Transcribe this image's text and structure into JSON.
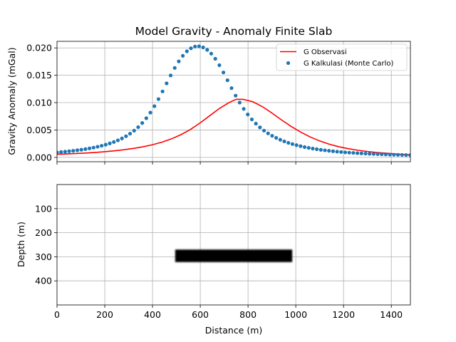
{
  "chart_data": [
    {
      "type": "line+scatter",
      "title": "Model Gravity - Anomaly Finite Slab",
      "xlabel": "",
      "ylabel": "Gravity Anomaly (mGal)",
      "xlim": [
        0,
        1480
      ],
      "ylim": [
        -0.0008,
        0.0212
      ],
      "x_ticks": [
        0,
        200,
        400,
        600,
        800,
        1000,
        1200,
        1400
      ],
      "x_ticklabels_visible": false,
      "y_ticks": [
        0.0,
        0.005,
        0.01,
        0.015,
        0.02
      ],
      "y_ticklabels": [
        "0.000",
        "0.005",
        "0.010",
        "0.015",
        "0.020"
      ],
      "grid": true,
      "legend": "top-right",
      "colors": {
        "observed": "#ff0000",
        "calculated": "#1f77b4"
      },
      "series": [
        {
          "name": "G Observasi",
          "style": "line",
          "x": [
            0,
            40,
            80,
            120,
            160,
            200,
            240,
            280,
            320,
            360,
            400,
            440,
            480,
            520,
            560,
            600,
            640,
            680,
            720,
            750,
            780,
            820,
            860,
            900,
            940,
            980,
            1020,
            1060,
            1100,
            1140,
            1180,
            1220,
            1260,
            1300,
            1340,
            1380,
            1420,
            1480
          ],
          "values": [
            0.00055,
            0.00062,
            0.0007,
            0.00079,
            0.0009,
            0.00103,
            0.00119,
            0.00139,
            0.00163,
            0.00193,
            0.00231,
            0.00278,
            0.00339,
            0.00416,
            0.00513,
            0.00631,
            0.00762,
            0.00893,
            0.01,
            0.0106,
            0.0106,
            0.01017,
            0.00927,
            0.0081,
            0.00685,
            0.00567,
            0.00462,
            0.00373,
            0.003,
            0.00241,
            0.00194,
            0.00158,
            0.0013,
            0.00107,
            0.00089,
            0.00075,
            0.00063,
            0.00047
          ]
        },
        {
          "name": "G Kalkulasi (Monte Carlo)",
          "style": "dots",
          "x": [
            0,
            17,
            34,
            51,
            68,
            85,
            102,
            119,
            136,
            153,
            170,
            187,
            204,
            221,
            238,
            255,
            272,
            289,
            306,
            323,
            340,
            357,
            374,
            391,
            408,
            425,
            442,
            459,
            476,
            493,
            510,
            527,
            544,
            561,
            578,
            595,
            612,
            629,
            646,
            663,
            680,
            697,
            714,
            731,
            748,
            765,
            782,
            799,
            816,
            833,
            850,
            867,
            884,
            901,
            918,
            935,
            952,
            969,
            986,
            1003,
            1020,
            1037,
            1054,
            1071,
            1088,
            1105,
            1122,
            1139,
            1156,
            1173,
            1190,
            1207,
            1224,
            1241,
            1258,
            1275,
            1292,
            1309,
            1326,
            1343,
            1360,
            1377,
            1394,
            1411,
            1428,
            1445,
            1462,
            1479
          ],
          "values": [
            0.0009,
            0.00097,
            0.00104,
            0.00112,
            0.0012,
            0.0013,
            0.0014,
            0.00151,
            0.00164,
            0.00178,
            0.00194,
            0.00212,
            0.00232,
            0.00255,
            0.00281,
            0.00311,
            0.00346,
            0.00386,
            0.00433,
            0.00488,
            0.00552,
            0.00628,
            0.00716,
            0.00818,
            0.00935,
            0.01065,
            0.01205,
            0.01352,
            0.01497,
            0.01634,
            0.01754,
            0.01856,
            0.01938,
            0.01993,
            0.02025,
            0.02029,
            0.02009,
            0.01964,
            0.01895,
            0.01801,
            0.01684,
            0.01551,
            0.01409,
            0.01265,
            0.01128,
            0.01001,
            0.00886,
            0.00784,
            0.00694,
            0.00616,
            0.00548,
            0.00489,
            0.00438,
            0.00394,
            0.00356,
            0.00322,
            0.00292,
            0.00266,
            0.00243,
            0.00223,
            0.00205,
            0.00188,
            0.00174,
            0.00161,
            0.00149,
            0.00138,
            0.00129,
            0.0012,
            0.00112,
            0.00105,
            0.00098,
            0.00092,
            0.00087,
            0.00082,
            0.00077,
            0.00073,
            0.00069,
            0.00065,
            0.00062,
            0.00059,
            0.00056,
            0.00053,
            0.0005,
            0.00048,
            0.00046,
            0.00044,
            0.00042,
            0.0004
          ]
        }
      ]
    },
    {
      "type": "section",
      "title": "",
      "xlabel": "Distance (m)",
      "ylabel": "Depth (m)",
      "xlim": [
        0,
        1480
      ],
      "ylim": [
        500,
        0
      ],
      "y_inverted": true,
      "x_ticks": [
        0,
        200,
        400,
        600,
        800,
        1000,
        1200,
        1400
      ],
      "x_ticklabels": [
        "0",
        "200",
        "400",
        "600",
        "800",
        "1000",
        "1200",
        "1400"
      ],
      "y_ticks": [
        100,
        200,
        300,
        400
      ],
      "y_ticklabels": [
        "100",
        "200",
        "300",
        "400"
      ],
      "grid": true,
      "body": {
        "x_start": 495,
        "x_end": 985,
        "depth_top": 270,
        "depth_bottom": 322,
        "color": "#000000"
      }
    }
  ]
}
